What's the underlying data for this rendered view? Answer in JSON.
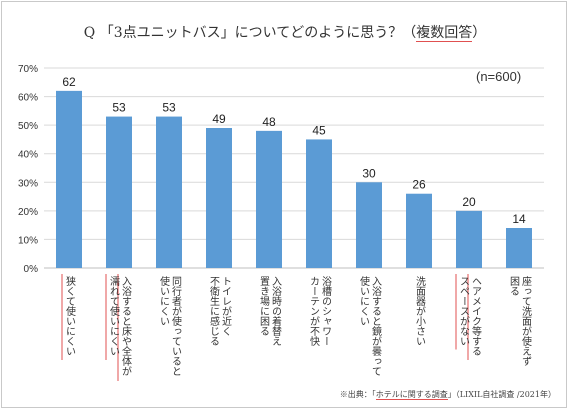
{
  "title": {
    "prefix": "Q 「3点ユニットバス」についてどのように思う？（",
    "highlight": "複数回答",
    "suffix": "）"
  },
  "sample_note": "(n=600)",
  "footer": {
    "prefix": "※出典：「",
    "highlight": "ホテルに関する調査",
    "suffix": "」（LIXIL自社調査 /2021年）"
  },
  "colors": {
    "bar": "#5b9bd5",
    "grid": "#d9d9d9",
    "axis": "#bfbfbf",
    "highlight": "#e05050"
  },
  "chart_data": {
    "type": "bar",
    "categories": [
      "狭くて使いにくい",
      "入浴すると床や全体が濡れて使いにくい",
      "同行者が使っていると使いにくい",
      "トイレが近く不衛生に感じる",
      "入浴時の着替え置き場に困る",
      "浴槽のシャワーカーテンが不快",
      "入浴すると鏡が曇って使いにくい",
      "洗面器が小さい",
      "ヘアメイク等するスペースがない",
      "座って洗面が使えず困る"
    ],
    "category_lines": [
      [
        "狭くて使いにくい"
      ],
      [
        "入浴すると床や全体が",
        "濡れて使いにくい"
      ],
      [
        "同行者が使っていると",
        "使いにくい"
      ],
      [
        "トイレが近く",
        "不衛生に感じる"
      ],
      [
        "入浴時の着替え",
        "置き場に困る"
      ],
      [
        "浴槽のシャワー",
        "カーテンが不快"
      ],
      [
        "入浴すると鏡が曇って",
        "使いにくい"
      ],
      [
        "洗面器が小さい"
      ],
      [
        "ヘアメイク等する",
        "スペースがない"
      ],
      [
        "座って洗面が使えず",
        "困る"
      ]
    ],
    "highlighted": [
      0,
      1,
      8
    ],
    "values": [
      62,
      53,
      53,
      49,
      48,
      45,
      30,
      26,
      20,
      14
    ],
    "y_ticks": [
      "0%",
      "10%",
      "20%",
      "30%",
      "40%",
      "50%",
      "60%",
      "70%"
    ],
    "ylim": [
      0,
      70
    ],
    "grid": true
  }
}
